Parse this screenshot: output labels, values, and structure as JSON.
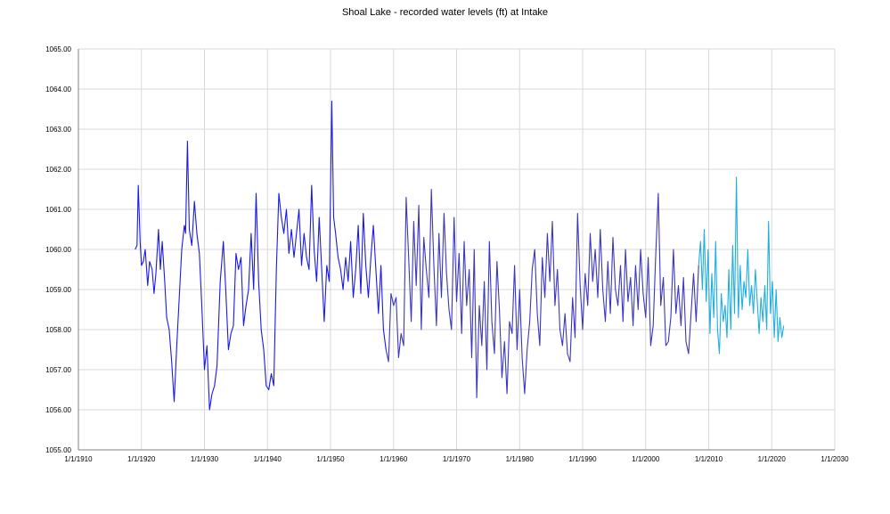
{
  "chart_data": {
    "type": "line",
    "title": "Shoal Lake - recorded water levels (ft) at Intake",
    "xlabel": "",
    "ylabel": "",
    "x_axis_type": "date",
    "xlim": [
      "1/1/1910",
      "1/1/2030"
    ],
    "ylim": [
      1055.0,
      1065.0
    ],
    "grid": true,
    "legend": "none",
    "x_tick_labels": [
      "1/1/1910",
      "1/1/1920",
      "1/1/1930",
      "1/1/1940",
      "1/1/1950",
      "1/1/1960",
      "1/1/1970",
      "1/1/1980",
      "1/1/1990",
      "1/1/2000",
      "1/1/2010",
      "1/1/2020",
      "1/1/2030"
    ],
    "y_tick_labels": [
      "1055.00",
      "1056.00",
      "1057.00",
      "1058.00",
      "1059.00",
      "1060.00",
      "1061.00",
      "1062.00",
      "1063.00",
      "1064.00",
      "1065.00"
    ],
    "series": [
      {
        "color": "#1a1ae6",
        "x": [
          1919.0,
          1919.3,
          1919.5,
          1919.8,
          1920.0,
          1920.3,
          1920.6,
          1921.0,
          1921.3,
          1921.7,
          1922.0,
          1922.3,
          1922.7,
          1923.0,
          1923.3,
          1923.7,
          1924.0,
          1924.4,
          1924.8,
          1925.2,
          1925.6,
          1926.0,
          1926.4,
          1926.8,
          1927.0,
          1927.3,
          1927.6,
          1928.0,
          1928.4,
          1928.8,
          1929.2,
          1929.6,
          1930.0,
          1930.4,
          1930.8,
          1931.2,
          1931.6,
          1932.0,
          1932.5,
          1933.0,
          1933.4,
          1933.8,
          1934.2,
          1934.6,
          1935.0,
          1935.4,
          1935.8,
          1936.2,
          1936.6,
          1937.0,
          1937.4,
          1937.8,
          1938.2,
          1938.6,
          1939.0,
          1939.4,
          1939.8,
          1940.2,
          1940.6,
          1941.0,
          1941.4,
          1941.8,
          1942.2,
          1942.6,
          1943.0,
          1943.4,
          1943.8,
          1944.2,
          1944.6,
          1945.0,
          1945.4,
          1945.8,
          1946.2,
          1946.6,
          1947.0,
          1947.4,
          1947.8,
          1948.2,
          1948.6,
          1949.0,
          1949.4,
          1949.8,
          1950.2,
          1950.5,
          1950.8,
          1951.2,
          1951.6,
          1952.0,
          1952.4,
          1952.8,
          1953.2,
          1953.6,
          1954.0,
          1954.4,
          1954.8,
          1955.2,
          1955.6,
          1956.0,
          1956.4,
          1956.8,
          1957.2,
          1957.6,
          1958.0,
          1958.4,
          1958.8
        ],
        "values": [
          1060.0,
          1060.1,
          1061.6,
          1060.2,
          1059.6,
          1059.7,
          1060.0,
          1059.1,
          1059.7,
          1059.5,
          1058.9,
          1059.4,
          1060.5,
          1059.5,
          1060.2,
          1059.2,
          1058.3,
          1058.0,
          1057.2,
          1056.2,
          1057.6,
          1058.8,
          1060.0,
          1060.6,
          1060.4,
          1062.7,
          1060.5,
          1060.1,
          1061.2,
          1060.4,
          1059.9,
          1058.5,
          1057.0,
          1057.6,
          1056.0,
          1056.4,
          1056.6,
          1057.1,
          1059.2,
          1060.2,
          1058.9,
          1057.5,
          1057.9,
          1058.1,
          1059.9,
          1059.5,
          1059.8,
          1058.1,
          1058.6,
          1059.0,
          1060.4,
          1059.0,
          1061.4,
          1059.2,
          1058.0,
          1057.5,
          1056.6,
          1056.5,
          1056.9,
          1056.6,
          1059.5,
          1061.4,
          1060.8,
          1060.4,
          1061.0,
          1059.9,
          1060.5,
          1059.8,
          1060.4,
          1061.0,
          1059.6,
          1060.4,
          1059.8,
          1059.5,
          1061.6,
          1060.0,
          1059.2,
          1060.8,
          1059.5,
          1058.2,
          1059.6,
          1059.2,
          1063.7,
          1060.8,
          1060.4,
          1059.8,
          1059.5,
          1059.0,
          1059.8,
          1059.2,
          1060.2,
          1058.8,
          1059.5,
          1060.6,
          1058.9,
          1060.9,
          1059.6,
          1058.8,
          1059.8,
          1060.6,
          1059.5,
          1058.4,
          1059.6,
          1058.0,
          1057.5
        ]
      },
      {
        "color": "#3a36c0",
        "x": [
          1958.8,
          1959.2,
          1959.6,
          1960.0,
          1960.4,
          1960.8,
          1961.2,
          1961.6,
          1962.0,
          1962.4,
          1962.8,
          1963.2,
          1963.6,
          1964.0,
          1964.4,
          1964.8,
          1965.2,
          1965.6,
          1966.0,
          1966.4,
          1966.8,
          1967.2,
          1967.6,
          1968.0,
          1968.4,
          1968.8,
          1969.2,
          1969.6,
          1970.0,
          1970.4,
          1970.8,
          1971.2,
          1971.6,
          1972.0,
          1972.4,
          1972.8,
          1973.2,
          1973.6,
          1974.0,
          1974.4,
          1974.8,
          1975.2,
          1975.6,
          1976.0,
          1976.4,
          1976.8,
          1977.2,
          1977.6,
          1978.0,
          1978.4,
          1978.8,
          1979.2,
          1979.6,
          1980.0,
          1980.4,
          1980.8,
          1981.2,
          1981.6,
          1982.0,
          1982.4,
          1982.8,
          1983.2,
          1983.6,
          1984.0,
          1984.4,
          1984.8,
          1985.2,
          1985.6,
          1986.0,
          1986.4,
          1986.8,
          1987.2,
          1987.6,
          1988.0,
          1988.4,
          1988.8,
          1989.2,
          1989.6,
          1990.0,
          1990.4,
          1990.8,
          1991.2,
          1991.6,
          1992.0,
          1992.4,
          1992.8,
          1993.2,
          1993.6,
          1994.0,
          1994.4,
          1994.8,
          1995.2,
          1995.6,
          1996.0,
          1996.4,
          1996.8,
          1997.2,
          1997.6,
          1998.0,
          1998.4,
          1998.8,
          1999.2,
          1999.6,
          2000.0,
          2000.4,
          2000.8,
          2001.2,
          2001.6,
          2002.0,
          2002.4,
          2002.8,
          2003.2,
          2003.6,
          2004.0,
          2004.4,
          2004.8,
          2005.2,
          2005.6,
          2006.0,
          2006.4,
          2006.8,
          2007.2,
          2007.6,
          2008.0,
          2008.4
        ],
        "values": [
          1057.5,
          1057.2,
          1058.9,
          1058.6,
          1058.8,
          1057.3,
          1057.9,
          1057.6,
          1061.3,
          1059.8,
          1058.2,
          1060.7,
          1059.1,
          1061.1,
          1058.0,
          1060.3,
          1059.5,
          1058.8,
          1061.5,
          1059.6,
          1058.1,
          1060.4,
          1058.8,
          1060.9,
          1059.4,
          1058.5,
          1058.0,
          1060.8,
          1058.7,
          1059.9,
          1057.9,
          1060.2,
          1058.6,
          1059.5,
          1057.3,
          1060.0,
          1056.3,
          1058.6,
          1057.6,
          1059.2,
          1057.0,
          1060.2,
          1058.2,
          1057.4,
          1059.7,
          1058.5,
          1056.8,
          1057.7,
          1056.4,
          1058.2,
          1057.9,
          1059.6,
          1057.5,
          1059.0,
          1057.3,
          1056.4,
          1057.5,
          1058.2,
          1059.5,
          1060.0,
          1058.4,
          1057.6,
          1059.8,
          1058.8,
          1060.4,
          1059.2,
          1060.7,
          1058.6,
          1059.5,
          1058.0,
          1057.6,
          1058.4,
          1057.4,
          1057.2,
          1058.8,
          1057.8,
          1060.9,
          1059.1,
          1058.0,
          1059.4,
          1058.6,
          1060.4,
          1059.2,
          1060.0,
          1058.8,
          1060.5,
          1059.0,
          1058.2,
          1059.7,
          1058.4,
          1060.3,
          1059.0,
          1058.6,
          1059.6,
          1058.2,
          1060.0,
          1058.7,
          1059.3,
          1058.1,
          1059.6,
          1058.5,
          1060.0,
          1058.9,
          1058.3,
          1059.8,
          1057.6,
          1058.1,
          1059.9,
          1061.4,
          1058.6,
          1059.3,
          1057.6,
          1057.7,
          1058.3,
          1060.0,
          1058.4,
          1059.1,
          1058.1,
          1059.3,
          1057.7,
          1057.4,
          1058.4,
          1059.4,
          1058.2,
          1059.6
        ]
      },
      {
        "color": "#1faee0",
        "x": [
          2008.4,
          2008.7,
          2009.0,
          2009.3,
          2009.6,
          2009.9,
          2010.2,
          2010.5,
          2010.8,
          2011.1,
          2011.4,
          2011.7,
          2012.0,
          2012.3,
          2012.6,
          2012.9,
          2013.2,
          2013.5,
          2013.8,
          2014.1,
          2014.4,
          2014.7,
          2015.0,
          2015.3,
          2015.6,
          2015.9,
          2016.2,
          2016.5,
          2016.8,
          2017.1,
          2017.4,
          2017.7,
          2018.0,
          2018.3,
          2018.6,
          2018.9,
          2019.2,
          2019.5,
          2019.8,
          2020.1,
          2020.4,
          2020.7,
          2021.0,
          2021.3,
          2021.6,
          2021.9
        ],
        "values": [
          1059.6,
          1060.2,
          1059.0,
          1060.5,
          1058.7,
          1060.0,
          1057.9,
          1059.4,
          1058.3,
          1060.2,
          1058.0,
          1057.4,
          1058.9,
          1058.2,
          1058.6,
          1057.8,
          1059.5,
          1058.0,
          1060.1,
          1058.4,
          1061.8,
          1058.3,
          1059.6,
          1058.5,
          1059.2,
          1058.8,
          1060.0,
          1058.6,
          1059.1,
          1058.4,
          1059.5,
          1058.7,
          1057.9,
          1058.8,
          1058.2,
          1059.1,
          1058.0,
          1060.7,
          1058.4,
          1059.2,
          1057.8,
          1059.0,
          1057.7,
          1058.3,
          1057.8,
          1058.1
        ]
      }
    ]
  }
}
